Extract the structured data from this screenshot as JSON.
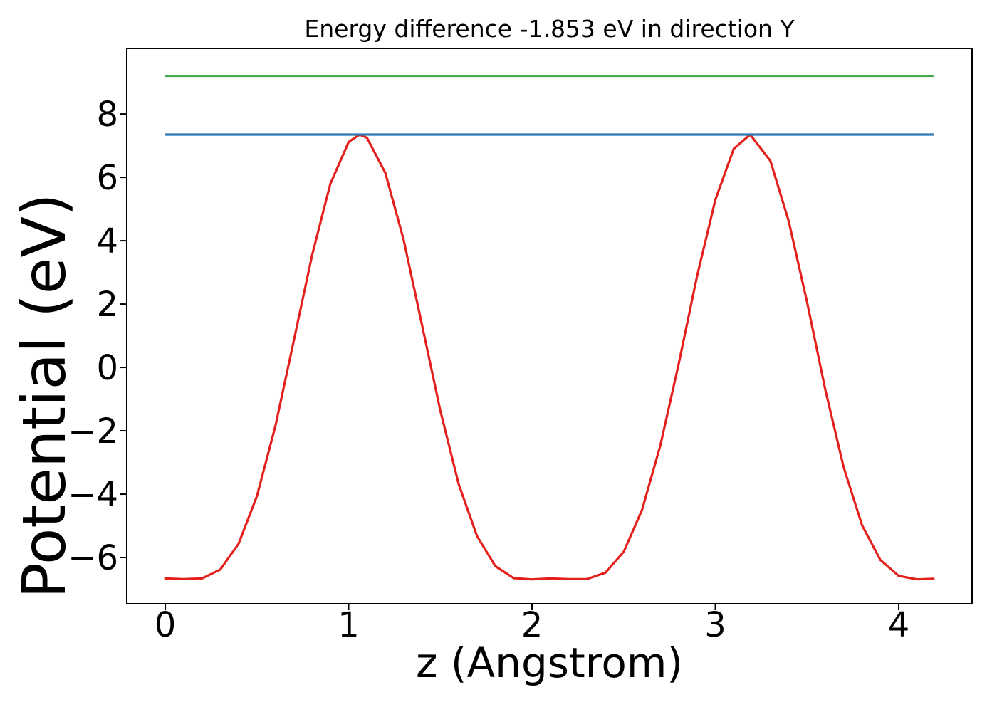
{
  "figure": {
    "title": "Energy difference -1.853 eV in direction Y",
    "xlabel": "z (Angstrom)",
    "ylabel": "Potential (eV)"
  },
  "chart_data": {
    "type": "line",
    "title": "Energy difference -1.853 eV in direction Y",
    "xlabel": "z (Angstrom)",
    "ylabel": "Potential (eV)",
    "xlim": [
      -0.21,
      4.4
    ],
    "ylim": [
      -7.46,
      10.07
    ],
    "x_ticks": [
      0,
      1,
      2,
      3,
      4
    ],
    "x_tick_labels": [
      "0",
      "1",
      "2",
      "3",
      "4"
    ],
    "y_ticks": [
      8,
      6,
      4,
      2,
      0,
      -2,
      -4,
      -6
    ],
    "y_tick_labels": [
      "8",
      "6",
      "4",
      "2",
      "0",
      "−2",
      "−4",
      "−6"
    ],
    "grid": false,
    "legend": "none",
    "energy_difference_eV": -1.853,
    "direction": "Y",
    "series": [
      {
        "name": "potential-curve",
        "type": "line",
        "color": "#e4201c",
        "width": 3.2,
        "points": [
          [
            0.0,
            -6.66
          ],
          [
            0.1,
            -6.68
          ],
          [
            0.2,
            -6.66
          ],
          [
            0.3,
            -6.38
          ],
          [
            0.4,
            -5.56
          ],
          [
            0.5,
            -4.06
          ],
          [
            0.6,
            -1.86
          ],
          [
            0.7,
            0.82
          ],
          [
            0.8,
            3.53
          ],
          [
            0.9,
            5.79
          ],
          [
            1.0,
            7.12
          ],
          [
            1.06,
            7.35
          ],
          [
            1.1,
            7.25
          ],
          [
            1.2,
            6.14
          ],
          [
            1.3,
            4.03
          ],
          [
            1.4,
            1.35
          ],
          [
            1.5,
            -1.36
          ],
          [
            1.6,
            -3.68
          ],
          [
            1.7,
            -5.32
          ],
          [
            1.8,
            -6.27
          ],
          [
            1.9,
            -6.65
          ],
          [
            2.0,
            -6.69
          ],
          [
            2.1,
            -6.66
          ],
          [
            2.2,
            -6.68
          ],
          [
            2.3,
            -6.68
          ],
          [
            2.4,
            -6.48
          ],
          [
            2.5,
            -5.82
          ],
          [
            2.6,
            -4.5
          ],
          [
            2.7,
            -2.46
          ],
          [
            2.8,
            0.11
          ],
          [
            2.9,
            2.88
          ],
          [
            3.0,
            5.29
          ],
          [
            3.1,
            6.9
          ],
          [
            3.19,
            7.35
          ],
          [
            3.3,
            6.52
          ],
          [
            3.4,
            4.62
          ],
          [
            3.5,
            2.06
          ],
          [
            3.6,
            -0.71
          ],
          [
            3.7,
            -3.16
          ],
          [
            3.8,
            -4.98
          ],
          [
            3.9,
            -6.08
          ],
          [
            4.0,
            -6.58
          ],
          [
            4.1,
            -6.69
          ],
          [
            4.19,
            -6.67
          ]
        ]
      },
      {
        "name": "hline-blue",
        "type": "hline",
        "color": "#2d78b4",
        "width": 3.2,
        "y": 7.35,
        "x_start": 0.0,
        "x_end": 4.19
      },
      {
        "name": "hline-green",
        "type": "hline",
        "color": "#45a84b",
        "width": 3.2,
        "y": 9.203,
        "x_start": 0.0,
        "x_end": 4.19
      }
    ]
  }
}
